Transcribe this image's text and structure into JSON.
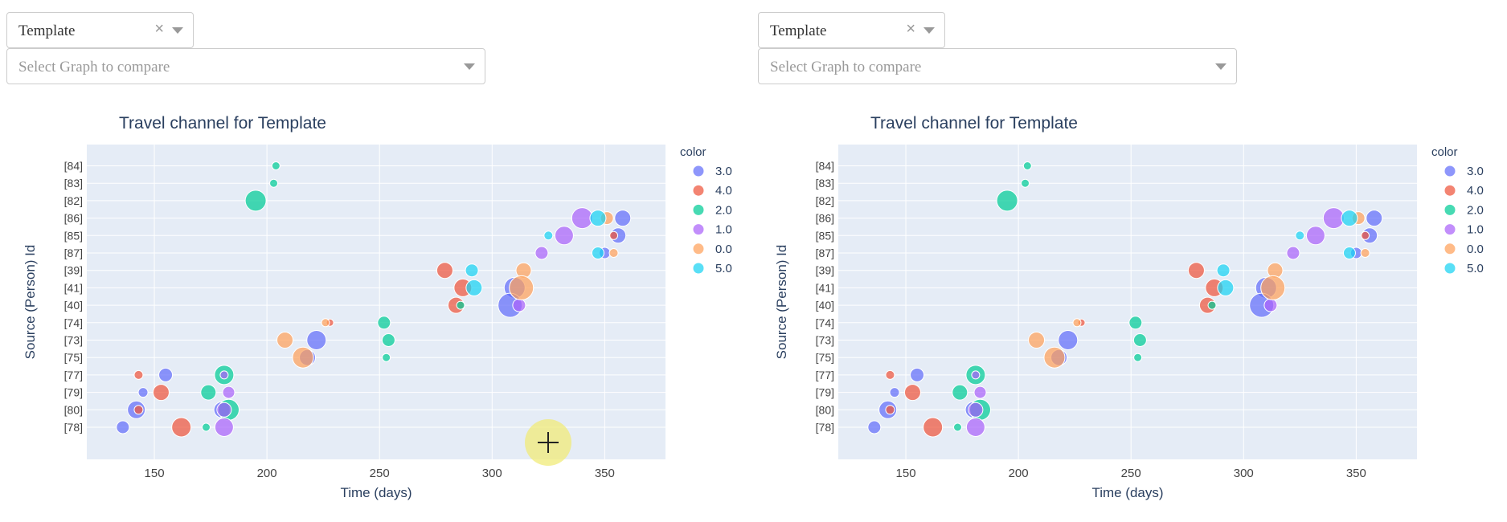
{
  "panels": [
    {
      "template_dropdown": {
        "value": "Template",
        "clear_glyph": "×"
      },
      "compare_dropdown": {
        "placeholder": "Select Graph to compare"
      }
    },
    {
      "template_dropdown": {
        "value": "Template",
        "clear_glyph": "×"
      },
      "compare_dropdown": {
        "placeholder": "Select Graph to compare"
      }
    }
  ],
  "chart_data": {
    "type": "scatter",
    "title": "Travel channel for Template",
    "xlabel": "Time (days)",
    "ylabel": "Source (Person) Id",
    "xlim": [
      120,
      377
    ],
    "xticks": [
      150,
      200,
      250,
      300,
      350
    ],
    "categories": [
      "[78]",
      "[80]",
      "[79]",
      "[77]",
      "[75]",
      "[73]",
      "[74]",
      "[40]",
      "[41]",
      "[39]",
      "[87]",
      "[85]",
      "[86]",
      "[82]",
      "[83]",
      "[84]"
    ],
    "grid": true,
    "legend_title": "color",
    "legend_placement": "right",
    "series": [
      {
        "name": "3.0",
        "color": "#636efa",
        "points": [
          {
            "x": 136,
            "y": "[78]",
            "s": 16
          },
          {
            "x": 145,
            "y": "[79]",
            "s": 12
          },
          {
            "x": 142,
            "y": "[80]",
            "s": 22
          },
          {
            "x": 155,
            "y": "[77]",
            "s": 17
          },
          {
            "x": 180,
            "y": "[80]",
            "s": 20
          },
          {
            "x": 222,
            "y": "[73]",
            "s": 24
          },
          {
            "x": 218,
            "y": "[75]",
            "s": 20
          },
          {
            "x": 310,
            "y": "[41]",
            "s": 26
          },
          {
            "x": 308,
            "y": "[40]",
            "s": 30
          },
          {
            "x": 358,
            "y": "[86]",
            "s": 20
          },
          {
            "x": 356,
            "y": "[85]",
            "s": 19
          },
          {
            "x": 350,
            "y": "[87]",
            "s": 14
          }
        ]
      },
      {
        "name": "4.0",
        "color": "#ef553b",
        "points": [
          {
            "x": 143,
            "y": "[77]",
            "s": 11
          },
          {
            "x": 153,
            "y": "[79]",
            "s": 20
          },
          {
            "x": 143,
            "y": "[80]",
            "s": 11
          },
          {
            "x": 162,
            "y": "[78]",
            "s": 24
          },
          {
            "x": 228,
            "y": "[74]",
            "s": 9
          },
          {
            "x": 279,
            "y": "[39]",
            "s": 20
          },
          {
            "x": 287,
            "y": "[41]",
            "s": 22
          },
          {
            "x": 284,
            "y": "[40]",
            "s": 20
          },
          {
            "x": 354,
            "y": "[85]",
            "s": 10
          }
        ]
      },
      {
        "name": "2.0",
        "color": "#00cc96",
        "points": [
          {
            "x": 204,
            "y": "[84]",
            "s": 10
          },
          {
            "x": 203,
            "y": "[83]",
            "s": 10
          },
          {
            "x": 195,
            "y": "[82]",
            "s": 26
          },
          {
            "x": 181,
            "y": "[77]",
            "s": 24
          },
          {
            "x": 174,
            "y": "[79]",
            "s": 19
          },
          {
            "x": 183,
            "y": "[80]",
            "s": 26
          },
          {
            "x": 173,
            "y": "[78]",
            "s": 10
          },
          {
            "x": 252,
            "y": "[74]",
            "s": 16
          },
          {
            "x": 254,
            "y": "[73]",
            "s": 16
          },
          {
            "x": 253,
            "y": "[75]",
            "s": 10
          },
          {
            "x": 286,
            "y": "[40]",
            "s": 10
          }
        ]
      },
      {
        "name": "1.0",
        "color": "#ab63fa",
        "points": [
          {
            "x": 183,
            "y": "[79]",
            "s": 15
          },
          {
            "x": 181,
            "y": "[80]",
            "s": 18
          },
          {
            "x": 181,
            "y": "[78]",
            "s": 23
          },
          {
            "x": 181,
            "y": "[77]",
            "s": 10
          },
          {
            "x": 322,
            "y": "[87]",
            "s": 16
          },
          {
            "x": 332,
            "y": "[85]",
            "s": 23
          },
          {
            "x": 340,
            "y": "[86]",
            "s": 26
          },
          {
            "x": 312,
            "y": "[40]",
            "s": 16
          }
        ]
      },
      {
        "name": "0.0",
        "color": "#ffa15a",
        "points": [
          {
            "x": 208,
            "y": "[73]",
            "s": 20
          },
          {
            "x": 216,
            "y": "[75]",
            "s": 26
          },
          {
            "x": 226,
            "y": "[74]",
            "s": 10
          },
          {
            "x": 314,
            "y": "[39]",
            "s": 19
          },
          {
            "x": 313,
            "y": "[41]",
            "s": 30
          },
          {
            "x": 351,
            "y": "[86]",
            "s": 16
          },
          {
            "x": 354,
            "y": "[87]",
            "s": 11
          }
        ]
      },
      {
        "name": "5.0",
        "color": "#19d3f3",
        "points": [
          {
            "x": 291,
            "y": "[39]",
            "s": 16
          },
          {
            "x": 292,
            "y": "[41]",
            "s": 20
          },
          {
            "x": 325,
            "y": "[85]",
            "s": 11
          },
          {
            "x": 347,
            "y": "[86]",
            "s": 20
          },
          {
            "x": 347,
            "y": "[87]",
            "s": 15
          }
        ]
      }
    ]
  }
}
